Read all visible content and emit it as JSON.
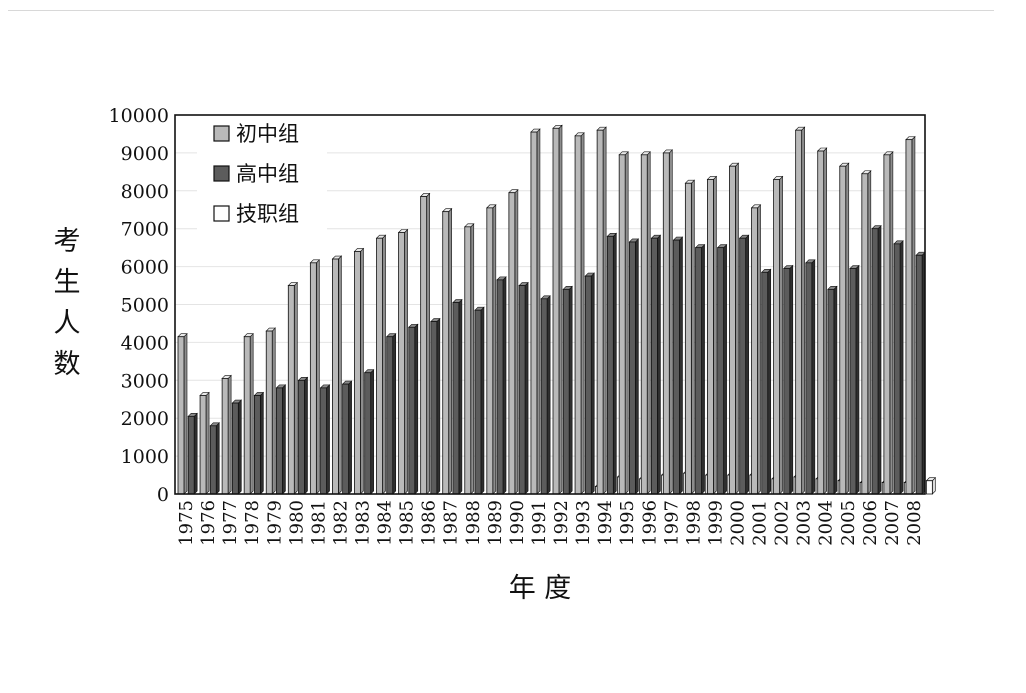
{
  "chart_data": {
    "type": "bar",
    "ylabel": "考生人数",
    "xlabel": "年 度",
    "ylim": [
      0,
      10000
    ],
    "yticks": [
      "0",
      "1000",
      "2000",
      "3000",
      "4000",
      "5000",
      "6000",
      "7000",
      "8000",
      "9000",
      "10000"
    ],
    "grid": "horizontal",
    "legend_position": "top-left",
    "categories": [
      "1975",
      "1976",
      "1977",
      "1978",
      "1979",
      "1980",
      "1981",
      "1982",
      "1983",
      "1984",
      "1985",
      "1986",
      "1987",
      "1988",
      "1989",
      "1990",
      "1991",
      "1992",
      "1993",
      "1994",
      "1995",
      "1996",
      "1997",
      "1998",
      "1999",
      "2000",
      "2001",
      "2002",
      "2003",
      "2004",
      "2005",
      "2006",
      "2007",
      "2008"
    ],
    "series": [
      {
        "name": "初中组",
        "color": "#b9b9b9",
        "values": [
          4150,
          2600,
          3050,
          4150,
          4300,
          5500,
          6100,
          6200,
          6400,
          6750,
          6900,
          7850,
          7450,
          7050,
          7550,
          7950,
          9550,
          9650,
          9450,
          9600,
          8950,
          8950,
          9000,
          8200,
          8300,
          8650,
          7550,
          8300,
          9600,
          9050,
          8650,
          8450,
          8950,
          9350
        ]
      },
      {
        "name": "高中组",
        "color": "#5c5c5c",
        "values": [
          2050,
          1800,
          2400,
          2600,
          2800,
          3000,
          2800,
          2900,
          3200,
          4150,
          4400,
          4550,
          5050,
          4850,
          5650,
          5500,
          5150,
          5400,
          5750,
          6800,
          6650,
          6750,
          6700,
          6500,
          6500,
          6750,
          5850,
          5950,
          6100,
          5400,
          5950,
          7000,
          6600,
          6300
        ]
      },
      {
        "name": "技职组",
        "color": "#ffffff",
        "values": [
          0,
          0,
          0,
          0,
          0,
          0,
          0,
          0,
          0,
          0,
          0,
          0,
          0,
          0,
          0,
          0,
          0,
          0,
          200,
          450,
          400,
          500,
          550,
          500,
          500,
          500,
          400,
          450,
          400,
          350,
          300,
          300,
          300,
          350
        ]
      }
    ]
  }
}
